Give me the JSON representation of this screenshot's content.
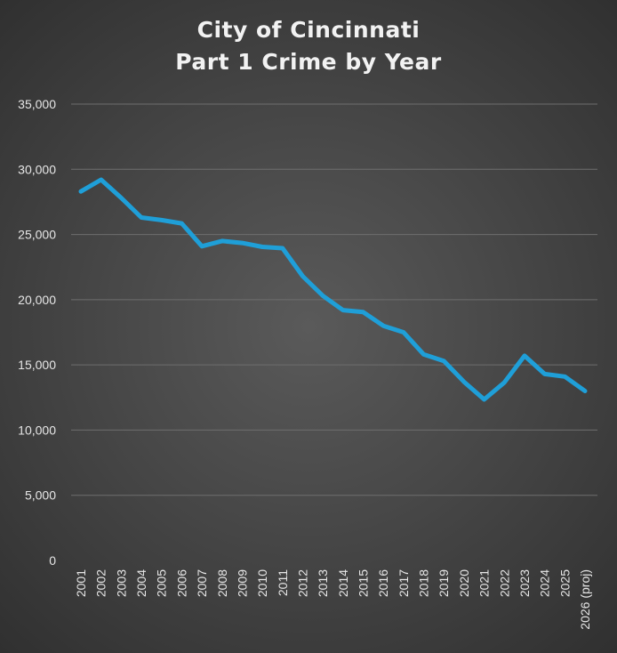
{
  "chart_data": {
    "type": "line",
    "title": [
      "City of Cincinnati",
      "Part 1 Crime by Year"
    ],
    "xlabel": "",
    "ylabel": "",
    "ylim": [
      0,
      35000
    ],
    "y_ticks": [
      "0",
      "5,000",
      "10,000",
      "15,000",
      "20,000",
      "25,000",
      "30,000",
      "35,000"
    ],
    "y_tick_values": [
      0,
      5000,
      10000,
      15000,
      20000,
      25000,
      30000,
      35000
    ],
    "categories": [
      "2001",
      "2002",
      "2003",
      "2004",
      "2005",
      "2006",
      "2007",
      "2008",
      "2009",
      "2010",
      "2011",
      "2012",
      "2013",
      "2014",
      "2015",
      "2016",
      "2017",
      "2018",
      "2019",
      "2020",
      "2021",
      "2022",
      "2023",
      "2024",
      "2025",
      "2026 (proj)"
    ],
    "series": [
      {
        "values": [
          28300,
          29200,
          27800,
          26300,
          26100,
          25850,
          24100,
          24500,
          24350,
          24050,
          23950,
          21800,
          20300,
          19200,
          19050,
          18000,
          17500,
          15800,
          15300,
          13700,
          12350,
          13650,
          15700,
          14300,
          14100,
          13000
        ],
        "color": "#1f9fd8"
      }
    ],
    "grid": true,
    "legend": "none"
  }
}
